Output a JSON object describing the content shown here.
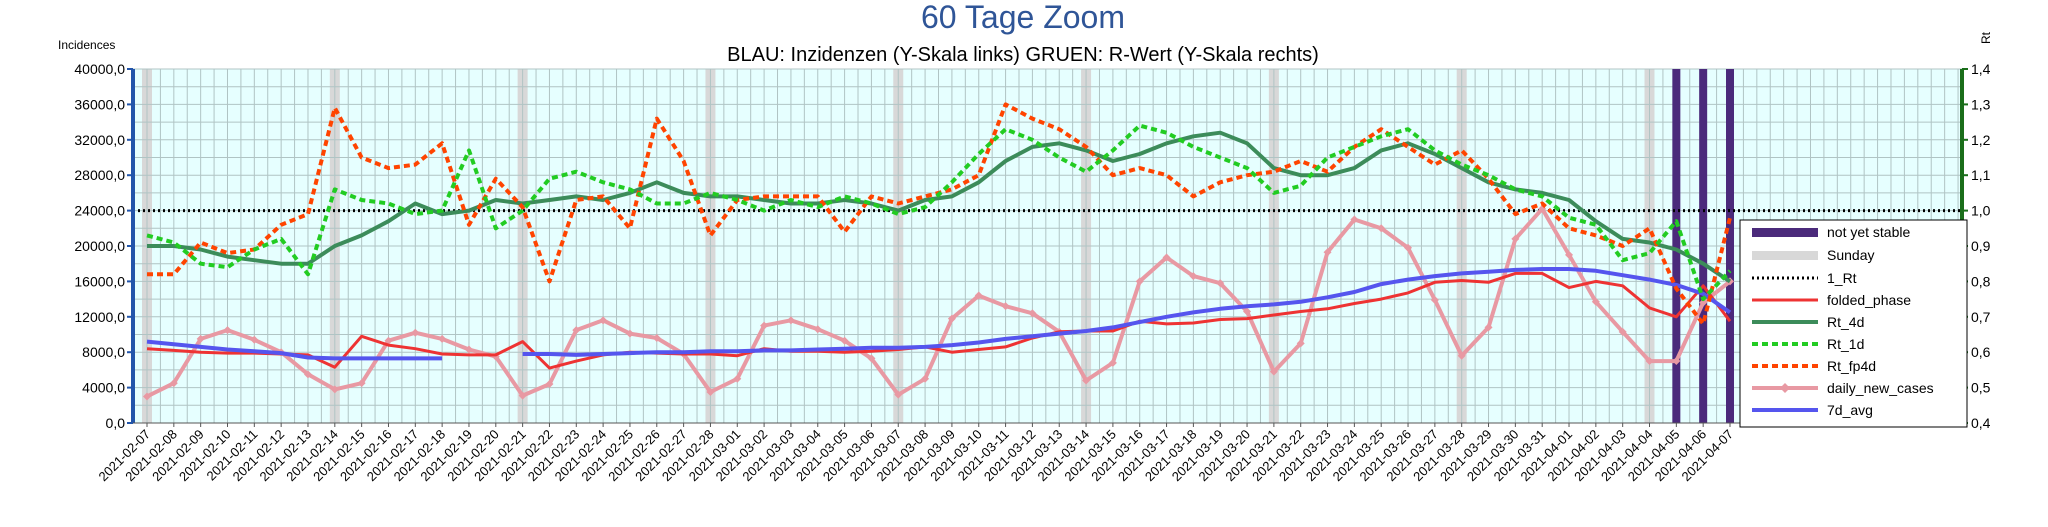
{
  "chart_data": {
    "type": "line",
    "title": "60 Tage Zoom",
    "subtitle": "BLAU: Inzidenzen (Y-Skala links)     GRUEN: R-Wert (Y-Skala rechts)",
    "ylabel_left": "Incidences",
    "ylabel_right": "Rt",
    "ylim_left": [
      0,
      40000
    ],
    "ylim_right": [
      0.4,
      1.4
    ],
    "yticks_left": [
      "0,0",
      "4000,0",
      "8000,0",
      "12000,0",
      "16000,0",
      "20000,0",
      "24000,0",
      "28000,0",
      "32000,0",
      "36000,0",
      "40000,0"
    ],
    "yticks_right": [
      "0,4",
      "0,5",
      "0,6",
      "0,7",
      "0,8",
      "0,9",
      "1,0",
      "1,1",
      "1,2",
      "1,3",
      "1,4"
    ],
    "grid": true,
    "legend_position": "right",
    "categories": [
      "2021-02-07",
      "2021-02-08",
      "2021-02-09",
      "2021-02-10",
      "2021-02-11",
      "2021-02-12",
      "2021-02-13",
      "2021-02-14",
      "2021-02-15",
      "2021-02-16",
      "2021-02-17",
      "2021-02-18",
      "2021-02-19",
      "2021-02-20",
      "2021-02-21",
      "2021-02-22",
      "2021-02-23",
      "2021-02-24",
      "2021-02-25",
      "2021-02-26",
      "2021-02-27",
      "2021-02-28",
      "2021-03-01",
      "2021-03-02",
      "2021-03-03",
      "2021-03-04",
      "2021-03-05",
      "2021-03-06",
      "2021-03-07",
      "2021-03-08",
      "2021-03-09",
      "2021-03-10",
      "2021-03-11",
      "2021-03-12",
      "2021-03-13",
      "2021-03-14",
      "2021-03-15",
      "2021-03-16",
      "2021-03-17",
      "2021-03-18",
      "2021-03-19",
      "2021-03-20",
      "2021-03-21",
      "2021-03-22",
      "2021-03-23",
      "2021-03-24",
      "2021-03-25",
      "2021-03-26",
      "2021-03-27",
      "2021-03-28",
      "2021-03-29",
      "2021-03-30",
      "2021-03-31",
      "2021-04-01",
      "2021-04-02",
      "2021-04-03",
      "2021-04-04",
      "2021-04-05",
      "2021-04-06",
      "2021-04-07"
    ],
    "sunday_dates": [
      "2021-02-07",
      "2021-02-14",
      "2021-02-21",
      "2021-02-28",
      "2021-03-07",
      "2021-03-14",
      "2021-03-21",
      "2021-03-28",
      "2021-04-04"
    ],
    "not_yet_stable_dates": [
      "2021-04-05",
      "2021-04-06",
      "2021-04-07"
    ],
    "reference_line": {
      "name": "1_Rt",
      "value": 1.0
    },
    "series": [
      {
        "name": "folded_phase",
        "axis": "left",
        "color": "#ee3333",
        "style": "solid",
        "values": [
          8400,
          8200,
          8000,
          7900,
          7900,
          7800,
          7700,
          6300,
          9800,
          8800,
          8400,
          7800,
          7700,
          7700,
          9200,
          6200,
          7000,
          7700,
          8000,
          7900,
          7800,
          7800,
          7600,
          8400,
          8100,
          8100,
          8000,
          8100,
          8300,
          8600,
          8000,
          8300,
          8600,
          9600,
          10300,
          10400,
          10400,
          11500,
          11200,
          11300,
          11700,
          11800,
          12200,
          12600,
          12900,
          13500,
          14000,
          14700,
          15900,
          16100,
          15900,
          16900,
          16900,
          15300,
          16000,
          15500,
          13000,
          12000,
          15500,
          11500
        ]
      },
      {
        "name": "Rt_4d",
        "axis": "right",
        "color": "#3c8c5a",
        "style": "solid",
        "values": [
          0.9,
          0.9,
          0.89,
          0.87,
          0.86,
          0.85,
          0.85,
          0.9,
          0.93,
          0.97,
          1.02,
          0.99,
          1.0,
          1.03,
          1.02,
          1.03,
          1.04,
          1.03,
          1.05,
          1.08,
          1.05,
          1.04,
          1.04,
          1.03,
          1.02,
          1.02,
          1.03,
          1.02,
          1.0,
          1.03,
          1.04,
          1.08,
          1.14,
          1.18,
          1.19,
          1.17,
          1.14,
          1.16,
          1.19,
          1.21,
          1.22,
          1.19,
          1.12,
          1.1,
          1.1,
          1.12,
          1.17,
          1.19,
          1.16,
          1.12,
          1.08,
          1.06,
          1.05,
          1.03,
          0.97,
          0.92,
          0.91,
          0.89,
          0.85,
          0.8
        ]
      },
      {
        "name": "Rt_1d",
        "axis": "right",
        "color": "#22cc22",
        "style": "dashed",
        "values": [
          0.93,
          0.91,
          0.85,
          0.84,
          0.89,
          0.92,
          0.82,
          1.06,
          1.03,
          1.02,
          0.99,
          1.0,
          1.17,
          0.95,
          1.0,
          1.09,
          1.11,
          1.08,
          1.06,
          1.02,
          1.02,
          1.05,
          1.03,
          1.0,
          1.03,
          1.01,
          1.04,
          1.02,
          0.99,
          1.01,
          1.08,
          1.16,
          1.23,
          1.2,
          1.15,
          1.11,
          1.17,
          1.24,
          1.22,
          1.18,
          1.15,
          1.12,
          1.05,
          1.07,
          1.15,
          1.18,
          1.21,
          1.23,
          1.17,
          1.13,
          1.1,
          1.06,
          1.04,
          0.98,
          0.96,
          0.86,
          0.88,
          0.97,
          0.75,
          0.83
        ]
      },
      {
        "name": "Rt_fp4d",
        "axis": "right",
        "color": "#ff4400",
        "style": "dashed",
        "values": [
          0.82,
          0.82,
          0.91,
          0.88,
          0.89,
          0.96,
          0.99,
          1.29,
          1.15,
          1.12,
          1.13,
          1.19,
          0.96,
          1.09,
          1.01,
          0.8,
          1.03,
          1.04,
          0.95,
          1.26,
          1.14,
          0.93,
          1.03,
          1.04,
          1.04,
          1.04,
          0.94,
          1.04,
          1.02,
          1.04,
          1.06,
          1.1,
          1.3,
          1.26,
          1.23,
          1.18,
          1.1,
          1.12,
          1.1,
          1.04,
          1.08,
          1.1,
          1.11,
          1.14,
          1.11,
          1.18,
          1.23,
          1.18,
          1.13,
          1.17,
          1.09,
          0.99,
          1.02,
          0.95,
          0.93,
          0.9,
          0.95,
          0.78,
          0.68,
          0.98
        ]
      },
      {
        "name": "daily_new_cases",
        "axis": "left",
        "color": "#e899a3",
        "style": "solid-marker",
        "values": [
          3000,
          4500,
          9500,
          10500,
          9400,
          8000,
          5500,
          3800,
          4500,
          9300,
          10200,
          9500,
          8300,
          7500,
          3100,
          4400,
          10500,
          11600,
          10100,
          9600,
          7800,
          3500,
          5000,
          11000,
          11600,
          10600,
          9300,
          7300,
          3200,
          5000,
          11800,
          14400,
          13200,
          12400,
          10300,
          4800,
          6800,
          16000,
          18700,
          16600,
          15800,
          12600,
          5800,
          9000,
          19300,
          23000,
          22000,
          19800,
          13900,
          7600,
          10800,
          20800,
          24200,
          19000,
          13700,
          10300,
          7000,
          7000,
          13600,
          16000
        ]
      },
      {
        "name": "7d_avg",
        "axis": "left",
        "color": "#5555ee",
        "style": "solid",
        "values": [
          9200,
          8900,
          8600,
          8300,
          8100,
          7900,
          7400,
          7300,
          7300,
          7300,
          7300,
          7300,
          null,
          null,
          7800,
          7800,
          7700,
          7800,
          7900,
          8000,
          8000,
          8100,
          8100,
          8200,
          8200,
          8300,
          8400,
          8500,
          8500,
          8600,
          8800,
          9100,
          9500,
          9800,
          10100,
          10400,
          10800,
          11400,
          12000,
          12500,
          12900,
          13200,
          13400,
          13700,
          14200,
          14800,
          15700,
          16200,
          16600,
          16900,
          17100,
          17300,
          17400,
          17400,
          17200,
          16700,
          16200,
          15600,
          14600,
          12500
        ]
      }
    ]
  },
  "legend": {
    "not_yet_stable": "not yet stable",
    "sunday": "Sunday",
    "rt_line": "1_Rt",
    "folded_phase": "folded_phase",
    "rt_4d": "Rt_4d",
    "rt_1d": "Rt_1d",
    "rt_fp4d": "Rt_fp4d",
    "daily_new_cases": "daily_new_cases",
    "avg_7d": "7d_avg"
  },
  "colors": {
    "plot_bg": "#e6ffff",
    "grid": "#b0c4c4",
    "left_axis": "#2255aa",
    "right_axis": "#1a6e1a",
    "title": "#2f5597",
    "not_yet_stable": "#4b2a7b",
    "sunday": "#d8d8d8"
  }
}
